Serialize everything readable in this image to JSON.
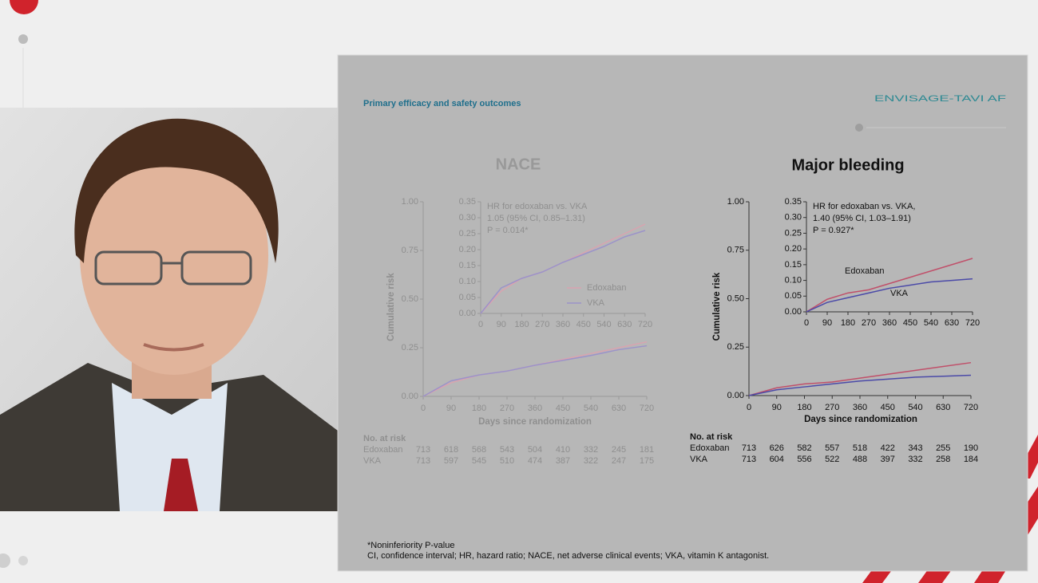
{
  "slide": {
    "title": "Primary efficacy and safety outcomes",
    "logo": "ENVISAGE-TAVI AF",
    "footnotes": [
      "*Noninferiority P-value",
      "CI, confidence interval; HR, hazard ratio; NACE, net adverse clinical events; VKA, vitamin K antagonist."
    ]
  },
  "chart_data": [
    {
      "type": "line",
      "title": "NACE",
      "x_label": "Days since randomization",
      "y_label": "Cumulative risk",
      "x": [
        0,
        90,
        180,
        270,
        360,
        450,
        540,
        630,
        720
      ],
      "series": [
        {
          "name": "Edoxaban",
          "color": "#d9a3b0",
          "values": [
            0,
            0.07,
            0.11,
            0.13,
            0.16,
            0.19,
            0.22,
            0.25,
            0.28
          ]
        },
        {
          "name": "VKA",
          "color": "#9c93c9",
          "values": [
            0,
            0.08,
            0.11,
            0.13,
            0.16,
            0.185,
            0.21,
            0.24,
            0.26
          ]
        }
      ],
      "xlim": [
        0,
        720
      ],
      "xticks": [
        0,
        90,
        180,
        270,
        360,
        450,
        540,
        630,
        720
      ],
      "ylim": [
        0,
        1
      ],
      "yticks": [
        {
          "value": 0,
          "label": "0.00"
        },
        0.25,
        {
          "value": 0.5,
          "label": "0.50"
        },
        0.75,
        {
          "value": 1,
          "label": "1.00"
        }
      ],
      "inset_ylim": [
        0,
        0.35
      ],
      "inset_yticks": [
        {
          "value": 0,
          "label": "0.00"
        },
        0.05,
        {
          "value": 0.1,
          "label": "0.10"
        },
        0.15,
        {
          "value": 0.2,
          "label": "0.20"
        },
        0.25,
        {
          "value": 0.3,
          "label": "0.30"
        },
        0.35
      ],
      "annotation": [
        "HR for edoxaban vs. VKA",
        "1.05 (95% CI, 0.85–1.31)",
        "P = 0.014*"
      ],
      "legend": "inset-right",
      "at_risk": {
        "title": "No. at risk",
        "rows": [
          {
            "name": "Edoxaban",
            "values": [
              713,
              618,
              568,
              543,
              504,
              410,
              332,
              245,
              181
            ]
          },
          {
            "name": "VKA",
            "values": [
              713,
              597,
              545,
              510,
              474,
              387,
              322,
              247,
              175
            ]
          }
        ]
      }
    },
    {
      "type": "line",
      "title": "Major bleeding",
      "x_label": "Days since randomization",
      "y_label": "Cumulative risk",
      "x": [
        0,
        90,
        180,
        270,
        360,
        450,
        540,
        630,
        720
      ],
      "series": [
        {
          "name": "Edoxaban",
          "color": "#c0506a",
          "values": [
            0,
            0.04,
            0.06,
            0.07,
            0.09,
            0.11,
            0.13,
            0.15,
            0.17
          ]
        },
        {
          "name": "VKA",
          "color": "#4b4aa8",
          "values": [
            0,
            0.03,
            0.045,
            0.06,
            0.075,
            0.085,
            0.095,
            0.1,
            0.105
          ]
        }
      ],
      "xlim": [
        0,
        720
      ],
      "xticks": [
        0,
        90,
        180,
        270,
        360,
        450,
        540,
        630,
        720
      ],
      "ylim": [
        0,
        1
      ],
      "yticks": [
        {
          "value": 0,
          "label": "0.00"
        },
        0.25,
        {
          "value": 0.5,
          "label": "0.50"
        },
        0.75,
        {
          "value": 1,
          "label": "1.00"
        }
      ],
      "inset_ylim": [
        0,
        0.35
      ],
      "inset_yticks": [
        {
          "value": 0,
          "label": "0.00"
        },
        0.05,
        {
          "value": 0.1,
          "label": "0.10"
        },
        0.15,
        {
          "value": 0.2,
          "label": "0.20"
        },
        0.25,
        {
          "value": 0.3,
          "label": "0.30"
        },
        0.35
      ],
      "annotation": [
        "HR for edoxaban vs. VKA,",
        "1.40 (95% CI, 1.03–1.91)",
        "P = 0.927*"
      ],
      "legend": "on-curve",
      "at_risk": {
        "title": "No. at risk",
        "rows": [
          {
            "name": "Edoxaban",
            "values": [
              713,
              626,
              582,
              557,
              518,
              422,
              343,
              255,
              190
            ]
          },
          {
            "name": "VKA",
            "values": [
              713,
              604,
              556,
              522,
              488,
              397,
              332,
              258,
              184
            ]
          }
        ]
      }
    }
  ]
}
